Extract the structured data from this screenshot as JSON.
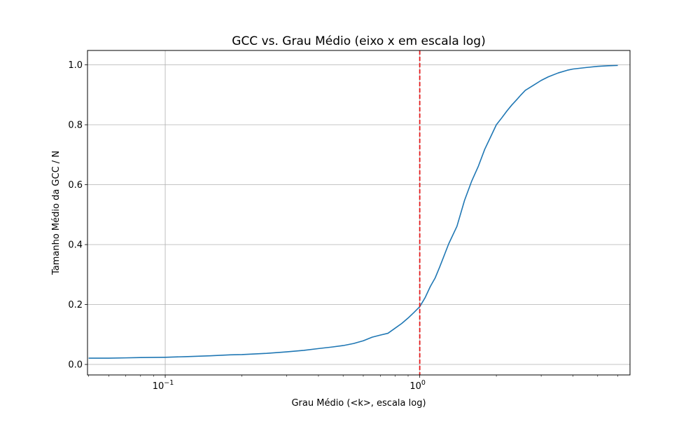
{
  "chart_data": {
    "type": "line",
    "title": "GCC vs. Grau Médio (eixo x em escala log)",
    "xlabel": "Grau Médio (<k>, escala log)",
    "ylabel": "Tamanho Médio da GCC / N",
    "xscale": "log",
    "xlim": [
      0.0495,
      6.7
    ],
    "ylim": [
      -0.035,
      1.048
    ],
    "grid": true,
    "x_ticks": [
      {
        "value": 0.1,
        "base": "10",
        "exp": "−1"
      },
      {
        "value": 1,
        "base": "10",
        "exp": "0"
      }
    ],
    "y_ticks": [
      0.0,
      0.2,
      0.4,
      0.6,
      0.8,
      1.0
    ],
    "y_tick_labels": [
      "0.0",
      "0.2",
      "0.4",
      "0.6",
      "0.8",
      "1.0"
    ],
    "reference_line": {
      "x": 1.0,
      "color": "#e41a1c",
      "style": "dashed"
    },
    "series": [
      {
        "color": "#1f77b4",
        "x": [
          0.05,
          0.06,
          0.07,
          0.08,
          0.1,
          0.12,
          0.15,
          0.18,
          0.2,
          0.25,
          0.3,
          0.35,
          0.4,
          0.45,
          0.5,
          0.55,
          0.6,
          0.65,
          0.7,
          0.75,
          0.8,
          0.85,
          0.9,
          0.95,
          1.0,
          1.05,
          1.1,
          1.15,
          1.2,
          1.3,
          1.4,
          1.5,
          1.6,
          1.7,
          1.8,
          1.9,
          2.0,
          2.1,
          2.2,
          2.3,
          2.4,
          2.5,
          2.6,
          2.8,
          3.0,
          3.2,
          3.5,
          3.8,
          4.0,
          4.5,
          5.0,
          5.5,
          6.0
        ],
        "y": [
          0.021,
          0.021,
          0.022,
          0.023,
          0.024,
          0.026,
          0.029,
          0.032,
          0.033,
          0.037,
          0.042,
          0.047,
          0.053,
          0.058,
          0.063,
          0.07,
          0.079,
          0.091,
          0.098,
          0.104,
          0.121,
          0.137,
          0.155,
          0.174,
          0.193,
          0.223,
          0.26,
          0.289,
          0.327,
          0.403,
          0.461,
          0.548,
          0.612,
          0.662,
          0.718,
          0.76,
          0.8,
          0.823,
          0.846,
          0.866,
          0.883,
          0.9,
          0.915,
          0.932,
          0.948,
          0.96,
          0.973,
          0.982,
          0.986,
          0.991,
          0.995,
          0.997,
          0.998
        ]
      }
    ]
  }
}
